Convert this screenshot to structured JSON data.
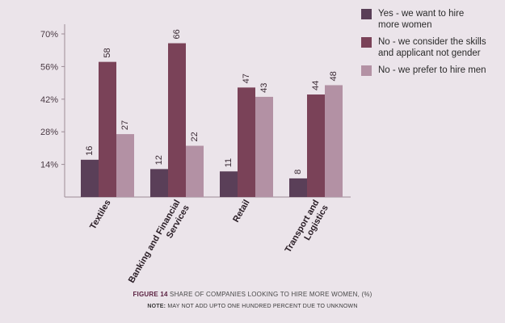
{
  "chart_data": {
    "type": "bar",
    "categories": [
      "Textiles",
      "Banking and Financial Services",
      "Retail",
      "Transport and Logistics"
    ],
    "category_lines": [
      [
        "Textiles"
      ],
      [
        "Banking and Financial",
        "Services"
      ],
      [
        "Retail"
      ],
      [
        "Transport and",
        "Logistics"
      ]
    ],
    "series": [
      {
        "name": "Yes - we want to hire more women",
        "legend_lines": [
          "Yes - we want to hire",
          "more women"
        ],
        "color": "#5a3f58",
        "values": [
          16,
          12,
          11,
          8
        ]
      },
      {
        "name": "No - we consider the skills and applicant not gender",
        "legend_lines": [
          "No - we consider the skills",
          "and applicant not gender"
        ],
        "color": "#7a4258",
        "values": [
          58,
          66,
          47,
          44
        ]
      },
      {
        "name": "No - we prefer to hire men",
        "legend_lines": [
          "No - we prefer to hire men"
        ],
        "color": "#b391a4",
        "values": [
          27,
          22,
          43,
          48
        ]
      }
    ],
    "yticks": [
      14,
      28,
      42,
      56,
      70
    ],
    "ytick_labels": [
      "14%",
      "28%",
      "42%",
      "56%",
      "70%"
    ],
    "ylim": [
      0,
      70
    ],
    "legend_position": "top-right",
    "grid": false
  },
  "caption": {
    "figure_label": "FIGURE 14",
    "text": " SHARE OF COMPANIES LOOKING TO HIRE MORE WOMEN, (%)"
  },
  "note": {
    "label": "NOTE:",
    "text": " MAY NOT ADD UPTO ONE HUNDRED PERCENT DUE TO UNKNOWN"
  }
}
